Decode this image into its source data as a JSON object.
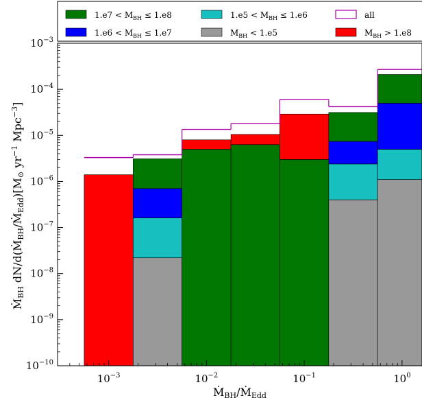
{
  "chart_data": {
    "type": "bar",
    "stacked": true,
    "xscale": "log",
    "yscale": "log",
    "xlim": [
      0.0003,
      1.6
    ],
    "ylim": [
      1e-10,
      0.001
    ],
    "grid": false,
    "legend_placement": "top",
    "xlabel": "Ṁ_BH/Ṁ_Edd",
    "ylabel": "Ṁ_BH dN/d(Ṁ_BH/Ṁ_Edd)[M⊙ yr⁻¹ Mpc⁻³]",
    "x_ticks": [
      {
        "value": 0.001,
        "base": "10",
        "exp": "−3"
      },
      {
        "value": 0.01,
        "base": "10",
        "exp": "−2"
      },
      {
        "value": 0.1,
        "base": "10",
        "exp": "−1"
      },
      {
        "value": 1,
        "base": "10",
        "exp": "0"
      }
    ],
    "y_ticks": [
      {
        "value": 1e-10,
        "base": "10",
        "exp": "−10"
      },
      {
        "value": 1e-09,
        "base": "10",
        "exp": "−9"
      },
      {
        "value": 1e-08,
        "base": "10",
        "exp": "−8"
      },
      {
        "value": 1e-07,
        "base": "10",
        "exp": "−7"
      },
      {
        "value": 1e-06,
        "base": "10",
        "exp": "−6"
      },
      {
        "value": 1e-05,
        "base": "10",
        "exp": "−5"
      },
      {
        "value": 0.0001,
        "base": "10",
        "exp": "−4"
      },
      {
        "value": 0.001,
        "base": "10",
        "exp": "−3"
      }
    ],
    "bin_edges": [
      0.000562,
      0.00178,
      0.00562,
      0.0178,
      0.0562,
      0.178,
      0.562,
      1.78
    ],
    "series": [
      {
        "name": "M_BH < 1.e5",
        "color": "#999999",
        "values": [
          0,
          2.2e-08,
          0,
          0,
          0,
          4e-07,
          1.1e-06
        ]
      },
      {
        "name": "1.e5 < M_BH ≤ 1.e6",
        "color": "#17bfbf",
        "values": [
          0,
          1.4e-07,
          0,
          0,
          0,
          2e-06,
          3.9e-06
        ]
      },
      {
        "name": "1.e6 < M_BH ≤ 1.e7",
        "color": "#0000ff",
        "values": [
          0,
          5.4e-07,
          0,
          0,
          0,
          5e-06,
          4.5e-05
        ]
      },
      {
        "name": "1.e7 < M_BH ≤ 1.e8",
        "color": "#007700",
        "values": [
          0,
          2.4e-06,
          5e-06,
          6.3e-06,
          3e-06,
          2.4e-05,
          0.00016
        ]
      },
      {
        "name": "M_BH > 1.e8",
        "color": "#ff0000",
        "values": [
          1.4e-06,
          0,
          3e-06,
          4.2e-06,
          2.6e-05,
          0,
          0
        ]
      }
    ],
    "all": {
      "name": "all",
      "color": "#aa00aa",
      "values": [
        3.3e-06,
        3.8e-06,
        1.35e-05,
        1.8e-05,
        6e-05,
        4.2e-05,
        0.00027
      ]
    },
    "legend": [
      {
        "label": "1.e7 < M_BH ≤ 1.e8",
        "sub": "BH",
        "pre": "1.e7 < M",
        "post": " ≤ 1.e8",
        "color": "#007700",
        "kind": "box"
      },
      {
        "label": "1.e5 < M_BH ≤ 1.e6",
        "sub": "BH",
        "pre": "1.e5 < M",
        "post": " ≤ 1.e6",
        "color": "#17bfbf",
        "kind": "box"
      },
      {
        "label": "all",
        "sub": "",
        "pre": "all",
        "post": "",
        "color": "#aa00aa",
        "kind": "line"
      },
      {
        "label": "1.e6 < M_BH ≤ 1.e7",
        "sub": "BH",
        "pre": "1.e6 < M",
        "post": " ≤ 1.e7",
        "color": "#0000ff",
        "kind": "box"
      },
      {
        "label": "M_BH < 1.e5",
        "sub": "BH",
        "pre": "M",
        "post": " < 1.e5",
        "color": "#999999",
        "kind": "box"
      },
      {
        "label": "M_BH > 1.e8",
        "sub": "BH",
        "pre": "M",
        "post": " > 1.e8",
        "color": "#ff0000",
        "kind": "box"
      }
    ]
  }
}
